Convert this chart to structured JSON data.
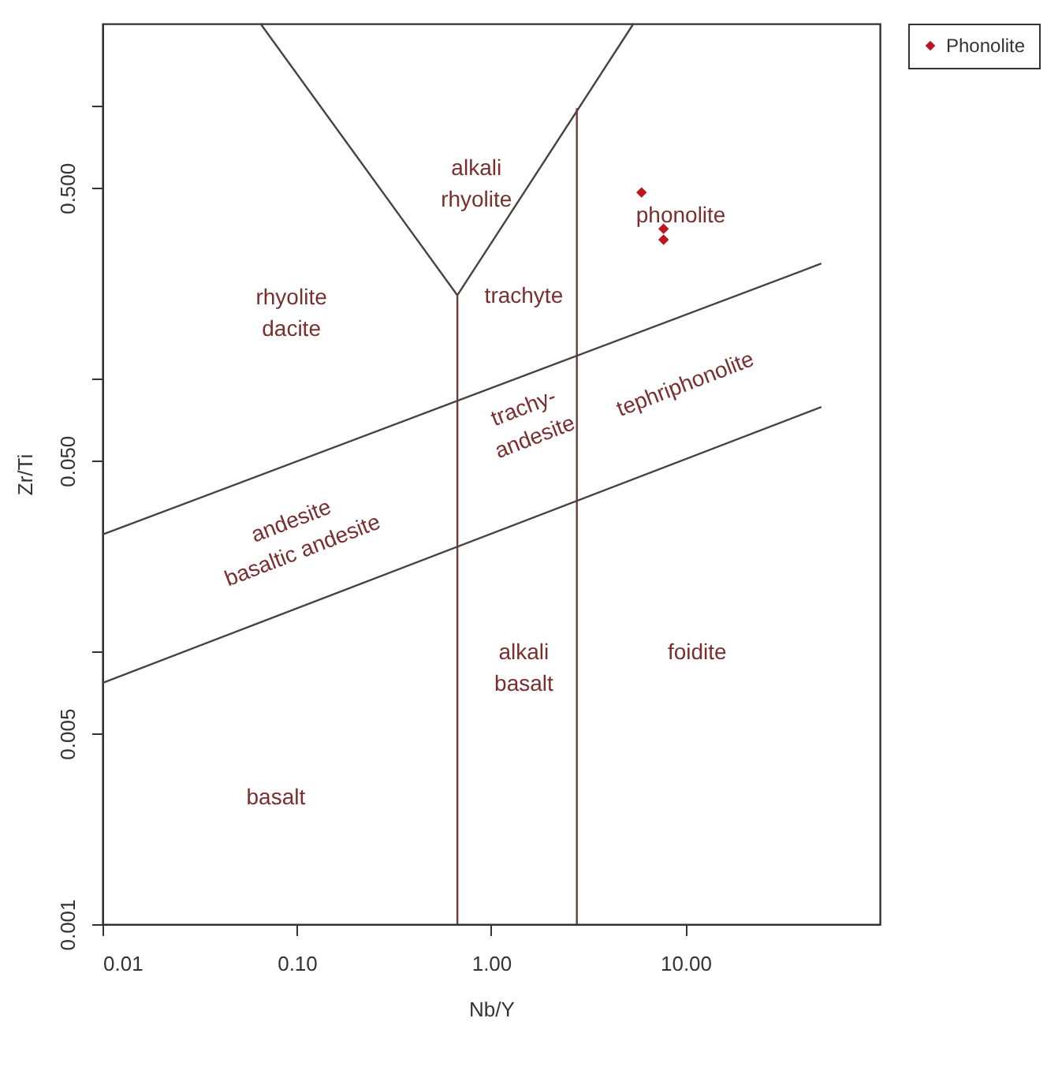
{
  "chart_data": {
    "type": "scatter",
    "xlabel": "Nb/Y",
    "ylabel": "Zr/Ti",
    "log": "xy",
    "grid": false,
    "legend": "right",
    "marker": "diamond",
    "xlim": [
      0.01,
      100
    ],
    "xticks": [
      0.01,
      {
        "value": 0.1,
        "label": "0.10"
      },
      {
        "value": 1,
        "label": "1.00"
      },
      {
        "value": 10,
        "label": "10.00"
      }
    ],
    "ylim": [
      0.001,
      2
    ],
    "yticks": [
      0.001,
      0.005,
      {
        "value": 0.01,
        "label": null
      },
      {
        "value": 0.05,
        "label": "0.050"
      },
      {
        "value": 0.1,
        "label": null
      },
      {
        "value": 0.5,
        "label": "0.500"
      },
      {
        "value": 1,
        "label": null
      }
    ],
    "series": [
      {
        "name": "Phonolite",
        "color": "#c0141e",
        "x": [
          5.94,
          7.71,
          7.71
        ],
        "values": [
          0.481,
          0.354,
          0.323
        ]
      },
      {
        "type": "line",
        "marker": "none",
        "color": "#4a4040",
        "x": [
          0.065,
          0.67
        ],
        "values": [
          2,
          0.202
        ]
      },
      {
        "type": "line",
        "marker": "none",
        "color": "#4a4040",
        "x": [
          0.67,
          5.4
        ],
        "values": [
          0.202,
          2
        ]
      },
      {
        "type": "line",
        "marker": "none",
        "color": "#6b3a3a",
        "x": [
          0.67,
          0.67
        ],
        "values": [
          0.001,
          0.202
        ]
      },
      {
        "type": "line",
        "marker": "none",
        "color": "#6b3a3a",
        "x": [
          2.76,
          2.76
        ],
        "values": [
          0.001,
          0.98
        ]
      },
      {
        "type": "line",
        "marker": "none",
        "color": "#4a4040",
        "x": [
          0.01,
          50
        ],
        "values": [
          0.0268,
          0.264
        ]
      },
      {
        "type": "line",
        "marker": "none",
        "color": "#4a4040",
        "x": [
          0.01,
          50
        ],
        "values": [
          0.00766,
          0.0787
        ]
      }
    ],
    "annotations": [
      "alkali\nrhyolite",
      "rhyolite\ndacite",
      "phonolite",
      "trachyte",
      "tephriphonolite",
      "trachy-\nandesite",
      "andesite\nbasaltic andesite",
      "alkali\nbasalt",
      "foidite",
      "basalt"
    ]
  }
}
